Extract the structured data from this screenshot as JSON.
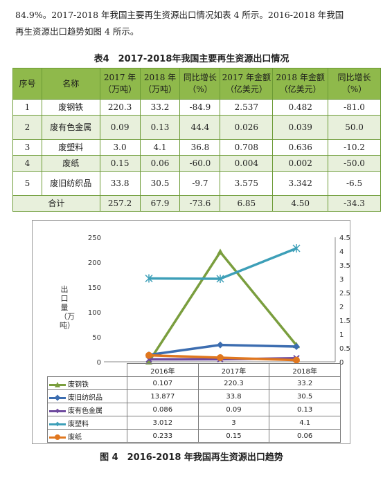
{
  "intro": {
    "line1": "84.9%。2017-2018 年我国主要再生资源出口情况如表 4 所示。2016-2018 年我国",
    "line2": "再生资源出口趋势如图 4 所示。"
  },
  "table4": {
    "caption": "表4　2017-2018年我国主要再生资源出口情况",
    "headers": [
      "序号",
      "名称",
      "2017 年（万吨）",
      "2018 年（万吨）",
      "同比增长（%）",
      "2017 年金额（亿美元）",
      "2018 年金额（亿美元）",
      "同比增长（%）"
    ],
    "rows": [
      [
        "1",
        "废钢铁",
        "220.3",
        "33.2",
        "-84.9",
        "2.537",
        "0.482",
        "-81.0"
      ],
      [
        "2",
        "废有色金属",
        "0.09",
        "0.13",
        "44.4",
        "0.026",
        "0.039",
        "50.0"
      ],
      [
        "3",
        "废塑料",
        "3.0",
        "4.1",
        "36.8",
        "0.708",
        "0.636",
        "-10.2"
      ],
      [
        "4",
        "废纸",
        "0.15",
        "0.06",
        "-60.0",
        "0.004",
        "0.002",
        "-50.0"
      ],
      [
        "5",
        "废旧纺织品",
        "33.8",
        "30.5",
        "-9.7",
        "3.575",
        "3.342",
        "-6.5"
      ]
    ],
    "total": [
      "合计",
      "257.2",
      "67.9",
      "-73.6",
      "6.85",
      "4.50",
      "-34.3"
    ]
  },
  "figure4": {
    "caption": "图 4　2016-2018 年我国再生资源出口趋势",
    "ylabel": "出口量（万吨）"
  },
  "chart_data": {
    "type": "line",
    "categories": [
      "2016年",
      "2017年",
      "2018年"
    ],
    "ylabel": "出口量（万吨）",
    "ylim": [
      0,
      250
    ],
    "yticks": [
      "0",
      "50",
      "100",
      "150",
      "200",
      "250"
    ],
    "y2lim": [
      0,
      4.5
    ],
    "y2ticks": [
      "0",
      "0.5",
      "1",
      "1.5",
      "2",
      "2.5",
      "3",
      "3.5",
      "4",
      "4.5"
    ],
    "grid": false,
    "legend": "data-table-below",
    "series": [
      {
        "name": "废钢铁",
        "values": [
          0.107,
          220.3,
          33.2
        ],
        "labels": [
          "0.107",
          "220.3",
          "33.2"
        ],
        "axis": "left",
        "color": "#7a9e3e",
        "marker": "triangle"
      },
      {
        "name": "废旧纺织品",
        "values": [
          13.877,
          33.8,
          30.5
        ],
        "labels": [
          "13.877",
          "33.8",
          "30.5"
        ],
        "axis": "left",
        "color": "#3c6db0",
        "marker": "diamond"
      },
      {
        "name": "废有色金属",
        "values": [
          0.086,
          0.09,
          0.13
        ],
        "labels": [
          "0.086",
          "0.09",
          "0.13"
        ],
        "axis": "right",
        "color": "#6e4a9e",
        "marker": "x"
      },
      {
        "name": "废塑料",
        "values": [
          3.012,
          3,
          4.1
        ],
        "labels": [
          "3.012",
          "3",
          "4.1"
        ],
        "axis": "right",
        "color": "#3d9fb8",
        "marker": "star"
      },
      {
        "name": "废纸",
        "values": [
          0.233,
          0.15,
          0.06
        ],
        "labels": [
          "0.233",
          "0.15",
          "0.06"
        ],
        "axis": "right",
        "color": "#e0771f",
        "marker": "circle"
      }
    ]
  }
}
